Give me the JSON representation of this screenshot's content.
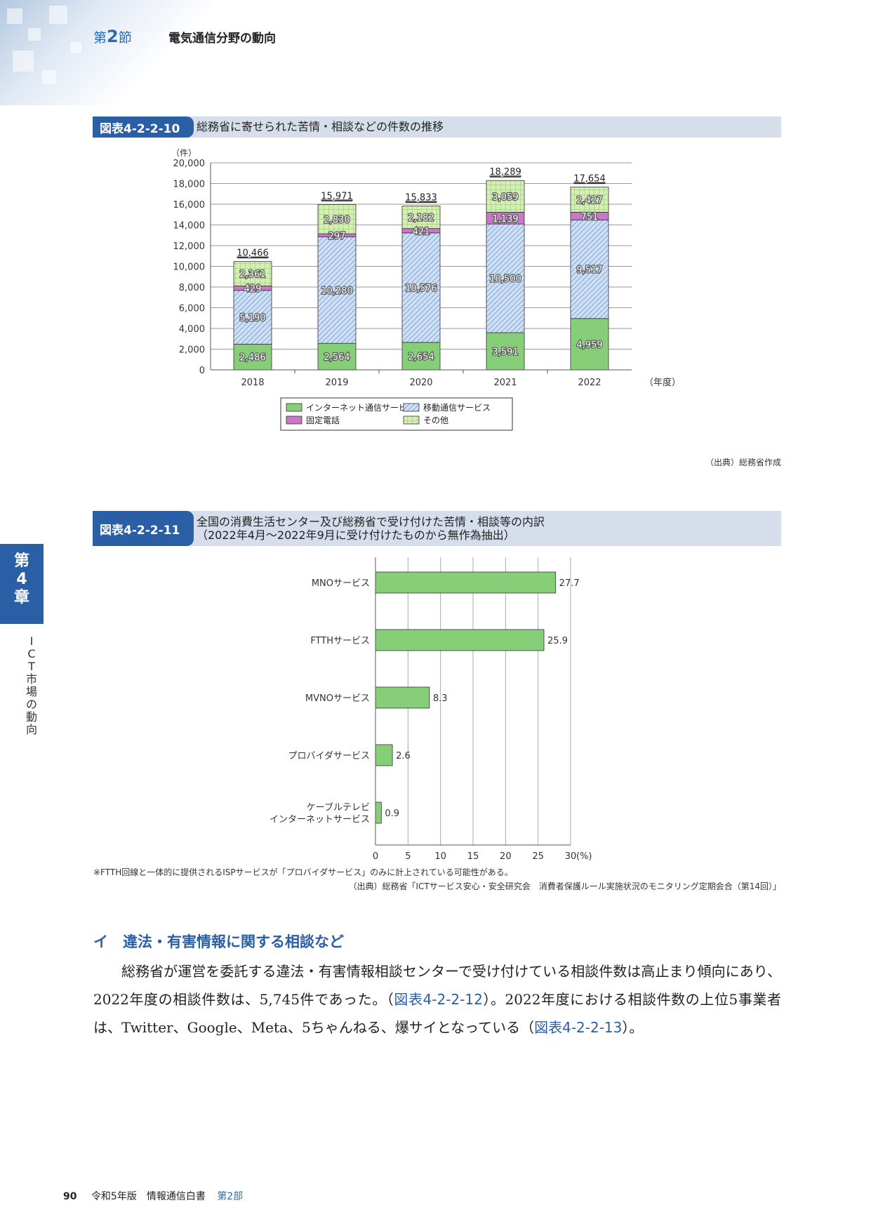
{
  "header": {
    "section_label": "第",
    "section_num": "2",
    "section_suffix": "節",
    "section_title": "電気通信分野の動向"
  },
  "figure1": {
    "tag": "図表4-2-2-10",
    "title": "総務省に寄せられた苦情・相談などの件数の推移",
    "source": "（出典）総務省作成",
    "chart_data": {
      "type": "bar",
      "stacked": true,
      "categories": [
        "2018",
        "2019",
        "2020",
        "2021",
        "2022"
      ],
      "series": [
        {
          "name": "インターネット通信サービス",
          "values": [
            2486,
            2564,
            2654,
            3591,
            4959
          ],
          "labels": [
            "2,486",
            "2,564",
            "2,654",
            "3,591",
            "4,959"
          ],
          "color": "#86cf78"
        },
        {
          "name": "移動通信サービス",
          "values": [
            5190,
            10280,
            10576,
            10500,
            9517
          ],
          "labels": [
            "5,190",
            "10,280",
            "10,576",
            "10,500",
            "9,517"
          ],
          "color": "#a9c5ea"
        },
        {
          "name": "固定電話",
          "values": [
            429,
            297,
            421,
            1139,
            751
          ],
          "labels": [
            "429",
            "297",
            "421",
            "1,139",
            "751"
          ],
          "color": "#c978c8"
        },
        {
          "name": "その他",
          "values": [
            2361,
            2830,
            2182,
            3059,
            2427
          ],
          "labels": [
            "2,361",
            "2,830",
            "2,182",
            "3,059",
            "2,427"
          ],
          "color": "#d5eeb4"
        }
      ],
      "totals": [
        "10,466",
        "15,971",
        "15,833",
        "18,289",
        "17,654"
      ],
      "ylim": [
        0,
        20000
      ],
      "yticks": [
        "0",
        "2,000",
        "4,000",
        "6,000",
        "8,000",
        "10,000",
        "12,000",
        "14,000",
        "16,000",
        "18,000",
        "20,000"
      ],
      "yunit": "（件）",
      "xunit": "（年度）",
      "grid": true,
      "legend_placement": "bottom"
    }
  },
  "figure2": {
    "tag": "図表4-2-2-11",
    "title_line1": "全国の消費生活センター及び総務省で受け付けた苦情・相談等の内訳",
    "title_line2": "（2022年4月～2022年9月に受け付けたものから無作為抽出）",
    "note": "※FTTH回線と一体的に提供されるISPサービスが「プロバイダサービス」のみに計上されている可能性がある。",
    "source": "（出典）総務省「ICTサービス安心・安全研究会　消費者保護ルール実施状況のモニタリング定期会合（第14回）」",
    "chart_data": {
      "type": "bar",
      "orientation": "horizontal",
      "categories": [
        "MNOサービス",
        "FTTHサービス",
        "MVNOサービス",
        "プロバイダサービス",
        "ケーブルテレビ インターネットサービス"
      ],
      "category_lines": [
        [
          "MNOサービス"
        ],
        [
          "FTTHサービス"
        ],
        [
          "MVNOサービス"
        ],
        [
          "プロバイダサービス"
        ],
        [
          "ケーブルテレビ",
          "インターネットサービス"
        ]
      ],
      "values": [
        27.7,
        25.9,
        8.3,
        2.6,
        0.9
      ],
      "labels": [
        "27.7",
        "25.9",
        "8.3",
        "2.6",
        "0.9"
      ],
      "color": "#86cf78",
      "xlim": [
        0,
        30
      ],
      "xticks": [
        "0",
        "5",
        "10",
        "15",
        "20",
        "25",
        "30"
      ],
      "xunit": "(%)",
      "grid": true
    }
  },
  "chapter": {
    "tab": [
      "第",
      "4",
      "章"
    ],
    "side": [
      "I",
      "C",
      "T",
      "市",
      "場",
      "の",
      "動",
      "向"
    ]
  },
  "section_heading": "イ　違法・有害情報に関する相談など",
  "body": {
    "p1": "総務省が運営を委託する違法・有害情報相談センターで受け付けている相談件数は高止まり傾向にあり、2022年度の相談件数は、5,745件であった。（",
    "link1": "図表4-2-2-12",
    "p2": "）。2022年度における相談件数の上位5事業者は、Twitter、Google、Meta、5ちゃんねる、爆サイとなっている（",
    "link2": "図表4-2-2-13",
    "p3": "）。"
  },
  "footer": {
    "page": "90",
    "book": "令和5年版　情報通信白書",
    "part": "第2部"
  }
}
